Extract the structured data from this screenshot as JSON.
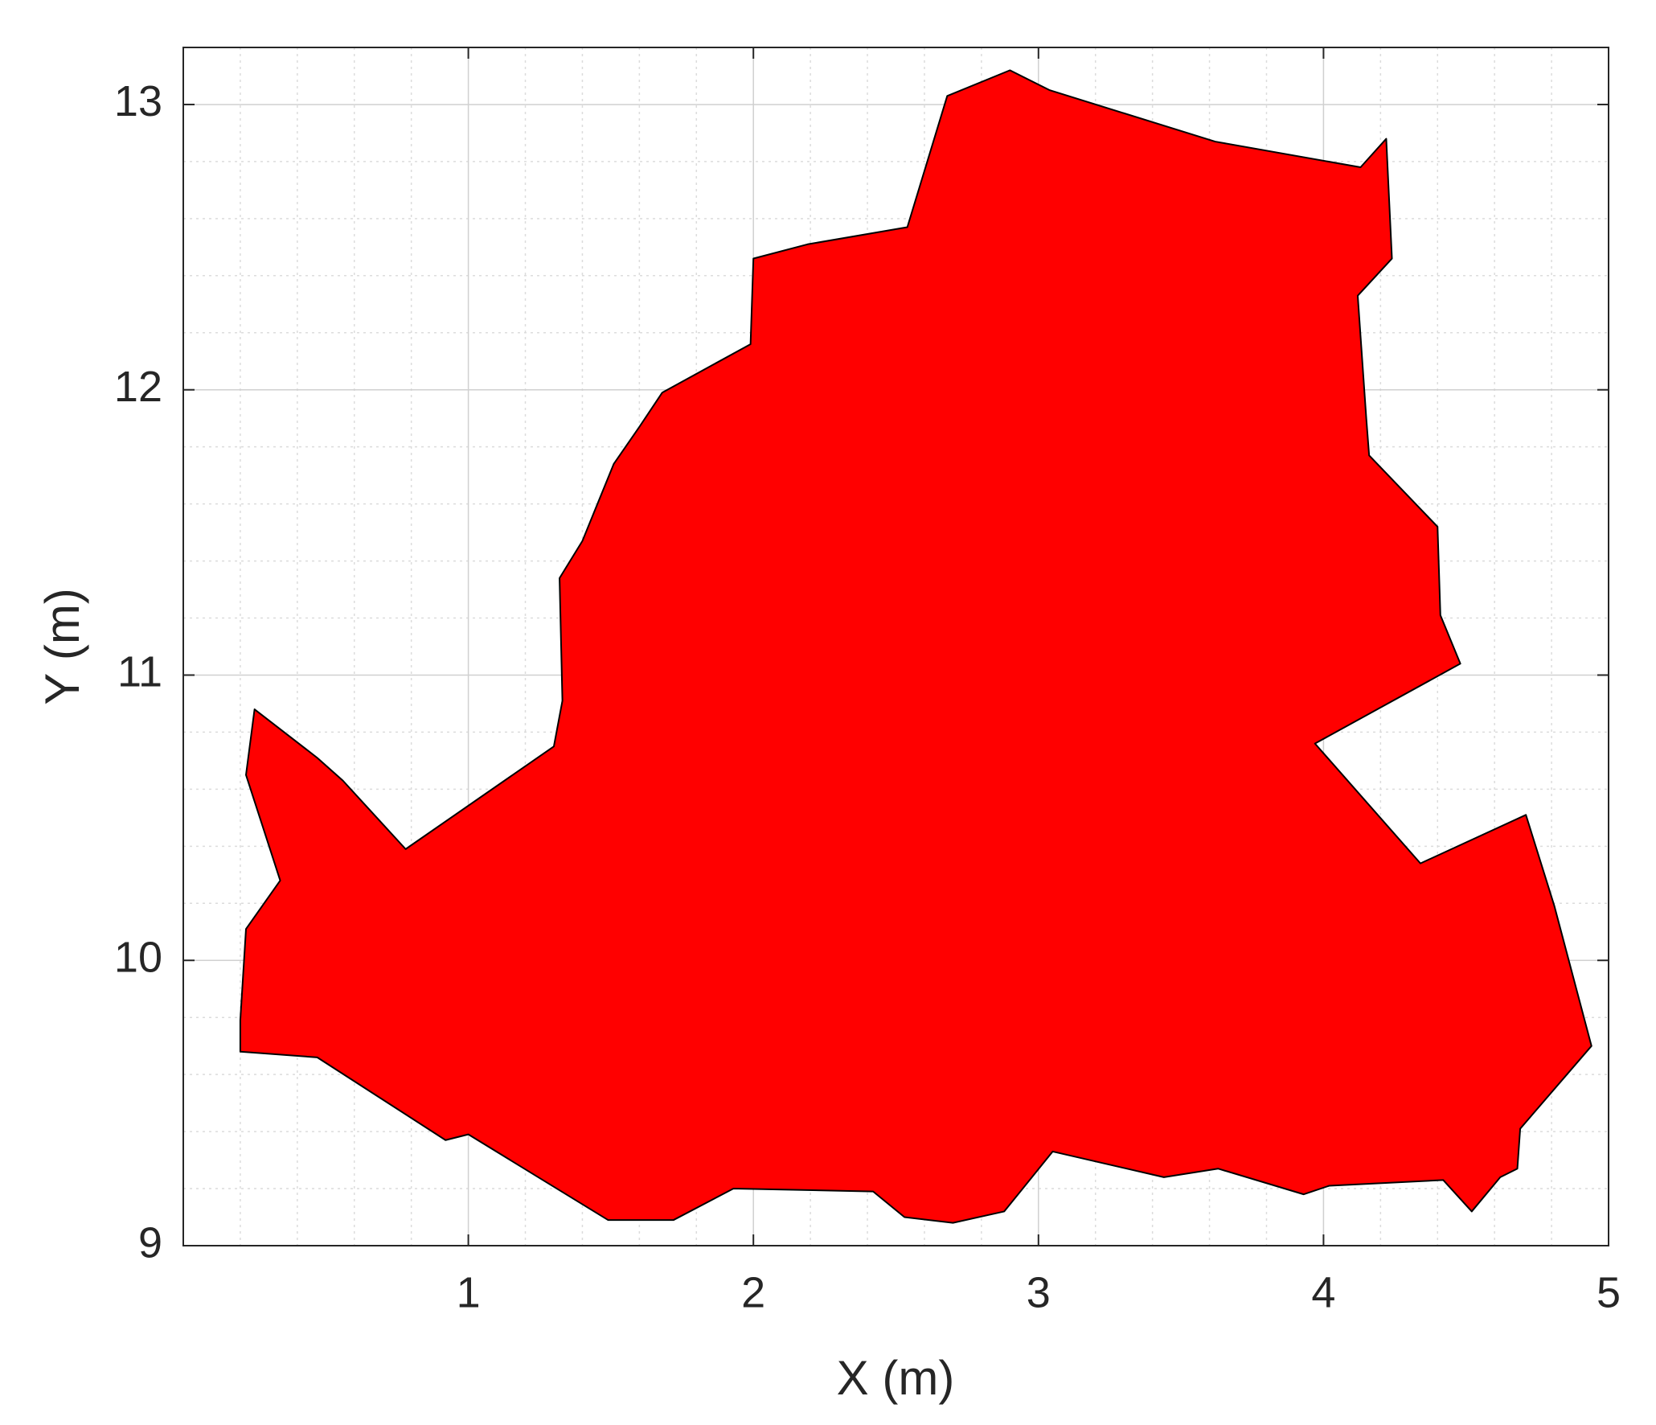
{
  "chart_data": {
    "type": "patch",
    "xlabel": "X (m)",
    "ylabel": "Y (m)",
    "color": "#ff0000",
    "edgecolor": "#000000",
    "x": [
      0.22,
      0.25,
      0.47,
      0.56,
      0.78,
      1.3,
      1.33,
      1.32,
      1.4,
      1.51,
      1.6,
      1.68,
      1.99,
      2.0,
      2.19,
      2.54,
      2.68,
      2.9,
      3.04,
      3.62,
      4.13,
      4.22,
      4.24,
      4.12,
      4.15,
      4.16,
      4.4,
      4.41,
      4.48,
      3.97,
      4.34,
      4.71,
      4.81,
      4.94,
      4.69,
      4.68,
      4.62,
      4.52,
      4.42,
      4.02,
      3.93,
      3.63,
      3.44,
      3.05,
      2.88,
      2.7,
      2.53,
      2.42,
      1.93,
      1.72,
      1.49,
      1.0,
      0.92,
      0.47,
      0.2,
      0.2,
      0.22,
      0.34
    ],
    "y": [
      10.65,
      10.88,
      10.71,
      10.63,
      10.39,
      10.75,
      10.91,
      11.34,
      11.47,
      11.74,
      11.87,
      11.99,
      12.16,
      12.46,
      12.51,
      12.57,
      13.03,
      13.12,
      13.05,
      12.87,
      12.78,
      12.88,
      12.46,
      12.33,
      11.9,
      11.77,
      11.52,
      11.21,
      11.04,
      10.76,
      10.34,
      10.51,
      10.19,
      9.7,
      9.41,
      9.27,
      9.24,
      9.12,
      9.23,
      9.21,
      9.18,
      9.27,
      9.24,
      9.33,
      9.12,
      9.08,
      9.1,
      9.19,
      9.2,
      9.09,
      9.09,
      9.39,
      9.37,
      9.66,
      9.68,
      9.79,
      10.11,
      10.28
    ],
    "xlim": [
      0,
      5
    ],
    "ylim": [
      9,
      13.2
    ],
    "xticks": [
      1,
      2,
      3,
      4,
      5
    ],
    "yticks": [
      9,
      10,
      11,
      12,
      13
    ],
    "xminorticks": [
      0.2,
      0.4,
      0.6,
      0.8,
      1.2,
      1.4,
      1.6,
      1.8,
      2.2,
      2.4,
      2.6,
      2.8,
      3.2,
      3.4,
      3.6,
      3.8,
      4.2,
      4.4,
      4.6,
      4.8
    ],
    "yminorticks": [
      9.2,
      9.4,
      9.6,
      9.8,
      10.2,
      10.4,
      10.6,
      10.8,
      11.2,
      11.4,
      11.6,
      11.8,
      12.2,
      12.4,
      12.6,
      12.8,
      13.2
    ],
    "grid": true,
    "minor_grid": true
  }
}
